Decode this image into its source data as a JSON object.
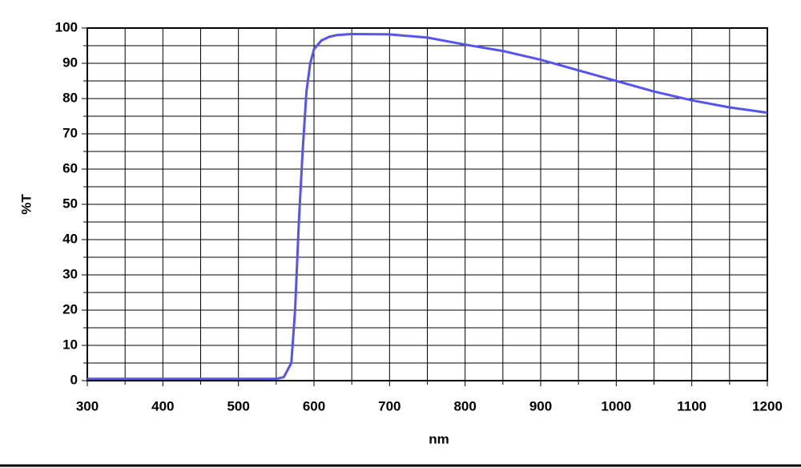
{
  "chart_data": {
    "type": "line",
    "x_label": "nm",
    "y_label": "%T",
    "x": [
      300,
      350,
      400,
      450,
      500,
      550,
      560,
      570,
      575,
      580,
      585,
      590,
      595,
      600,
      610,
      620,
      630,
      650,
      700,
      750,
      800,
      850,
      900,
      950,
      1000,
      1050,
      1100,
      1150,
      1200
    ],
    "series": [
      {
        "name": "%T",
        "color": "#5555ee",
        "values": [
          0.5,
          0.5,
          0.5,
          0.5,
          0.5,
          0.5,
          1,
          5,
          20,
          45,
          65,
          82,
          90,
          94,
          96.5,
          97.5,
          98,
          98.3,
          98.2,
          97.3,
          95.3,
          93.5,
          91,
          88,
          85,
          82,
          79.5,
          77.5,
          76
        ]
      }
    ],
    "xlim": [
      300,
      1200
    ],
    "ylim": [
      0,
      100
    ],
    "xticks": [
      300,
      400,
      500,
      600,
      700,
      800,
      900,
      1000,
      1100,
      1200
    ],
    "yticks": [
      0,
      10,
      20,
      30,
      40,
      50,
      60,
      70,
      80,
      90,
      100
    ],
    "minor_xticks": [
      350,
      450,
      550,
      650,
      750,
      850,
      950,
      1050,
      1150
    ],
    "minor_yticks": [
      5,
      15,
      25,
      35,
      45,
      55,
      65,
      75,
      85,
      95
    ],
    "grid": true
  }
}
